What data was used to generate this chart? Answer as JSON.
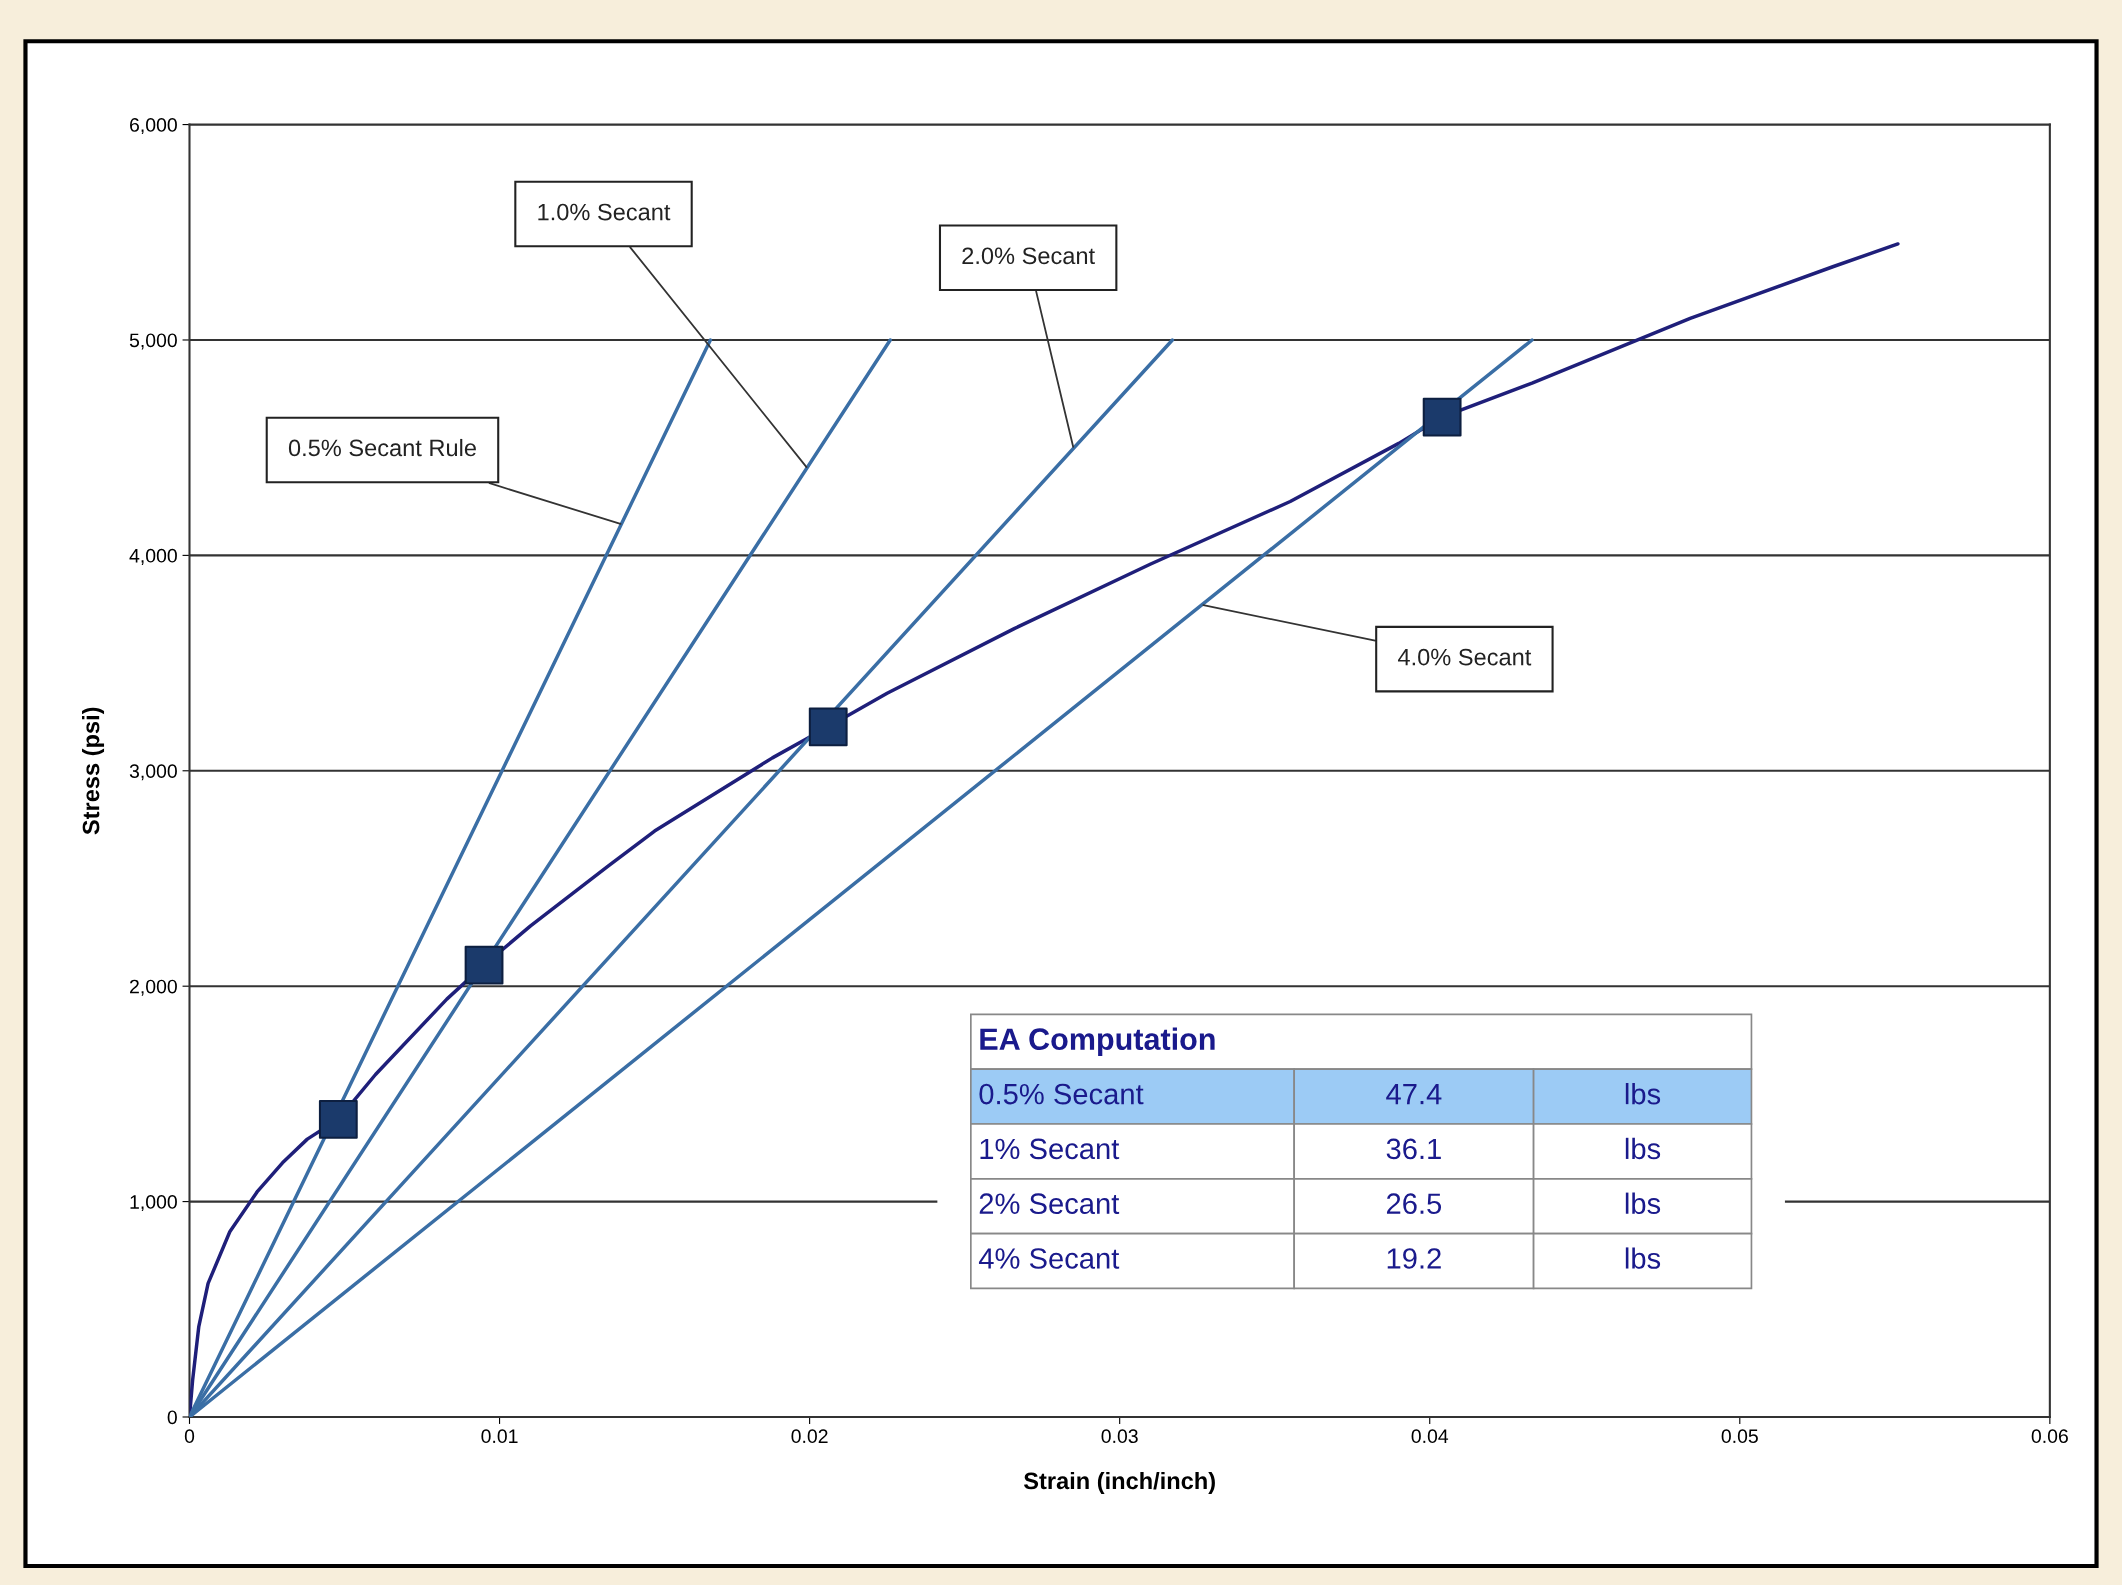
{
  "chart_data": {
    "type": "line",
    "xlabel": "Strain (inch/inch)",
    "ylabel": "Stress (psi)",
    "xlim": [
      0,
      0.06
    ],
    "xticks": [
      0,
      0.01,
      0.02,
      0.03,
      0.04,
      0.05,
      0.06
    ],
    "ylim": [
      0,
      6000
    ],
    "yticks": [
      {
        "value": 0,
        "label": "0"
      },
      {
        "value": 1000,
        "label": "1,000"
      },
      {
        "value": 2000,
        "label": "2,000"
      },
      {
        "value": 3000,
        "label": "3,000"
      },
      {
        "value": 4000,
        "label": "4,000"
      },
      {
        "value": 5000,
        "label": "5,000"
      },
      {
        "value": 6000,
        "label": "6,000"
      }
    ],
    "grid": "y",
    "series": [
      {
        "color": "#1f1f7a",
        "x": [
          0,
          0.0001,
          0.0003,
          0.0006,
          0.0013,
          0.0022,
          0.003,
          0.0038,
          0.0048,
          0.006,
          0.0083,
          0.0095,
          0.011,
          0.0135,
          0.015,
          0.0188,
          0.0206,
          0.0225,
          0.0266,
          0.031,
          0.0355,
          0.039,
          0.0404,
          0.0433,
          0.0484,
          0.053,
          0.0551
        ],
        "values": [
          0,
          170,
          420,
          620,
          860,
          1049,
          1180,
          1290,
          1382,
          1590,
          1940,
          2098,
          2280,
          2557,
          2720,
          3060,
          3204,
          3360,
          3660,
          3960,
          4250,
          4520,
          4642,
          4800,
          5100,
          5340,
          5446
        ]
      },
      {
        "color": "#3a6ea5",
        "x": [
          0,
          0.0168
        ],
        "values": [
          0,
          5000
        ]
      },
      {
        "color": "#3a6ea5",
        "x": [
          0,
          0.0226
        ],
        "values": [
          0,
          5000
        ]
      },
      {
        "color": "#3a6ea5",
        "x": [
          0,
          0.0317
        ],
        "values": [
          0,
          5000
        ]
      },
      {
        "color": "#3a6ea5",
        "x": [
          0,
          0.0433
        ],
        "values": [
          0,
          5000
        ]
      },
      {
        "type": "scatter",
        "marker": "square",
        "color": "#1b3a6b",
        "x": [
          0.0048,
          0.0095,
          0.0206,
          0.0404
        ],
        "values": [
          1382,
          2098,
          3204,
          4642
        ]
      }
    ],
    "annotations": [
      {
        "text": "0.5% Secant Rule",
        "x": 0.0139,
        "y": 4146
      },
      {
        "text": "1.0% Secant",
        "x": 0.0199,
        "y": 4410
      },
      {
        "text": "2.0% Secant",
        "x": 0.0285,
        "y": 4504
      },
      {
        "text": "4.0% Secant",
        "x": 0.0327,
        "y": 3769
      },
      "EA Computation",
      "0.5% Secant",
      "47.4",
      "lbs",
      "1% Secant",
      "36.1",
      "lbs",
      "2% Secant",
      "26.5",
      "lbs",
      "4% Secant",
      "19.2",
      "lbs"
    ]
  }
}
